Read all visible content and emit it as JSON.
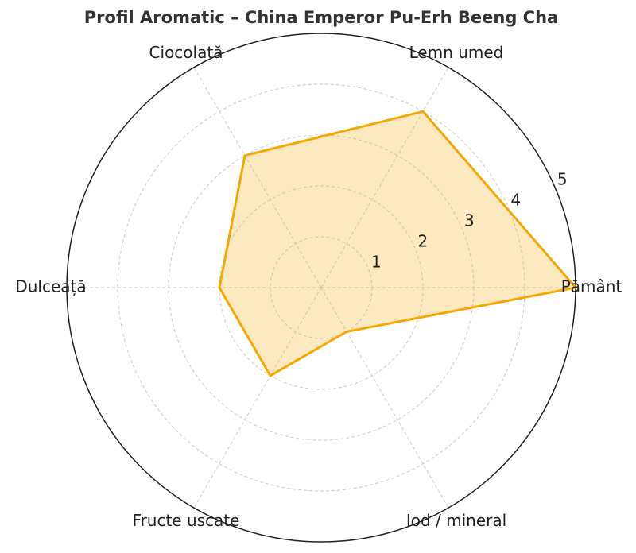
{
  "chart_data": {
    "type": "radar",
    "title": "Profil Aromatic – China Emperor Pu-Erh Beeng Cha",
    "categories": [
      "Pământ",
      "Lemn umed",
      "Ciocolată",
      "Dulceață",
      "Fructe uscate",
      "Iod / mineral"
    ],
    "values": [
      5,
      4,
      3,
      2,
      2,
      1
    ],
    "color": "#f5a800",
    "rlim": [
      0,
      5
    ],
    "rticks": [
      1,
      2,
      3,
      4,
      5
    ],
    "grid": true
  }
}
